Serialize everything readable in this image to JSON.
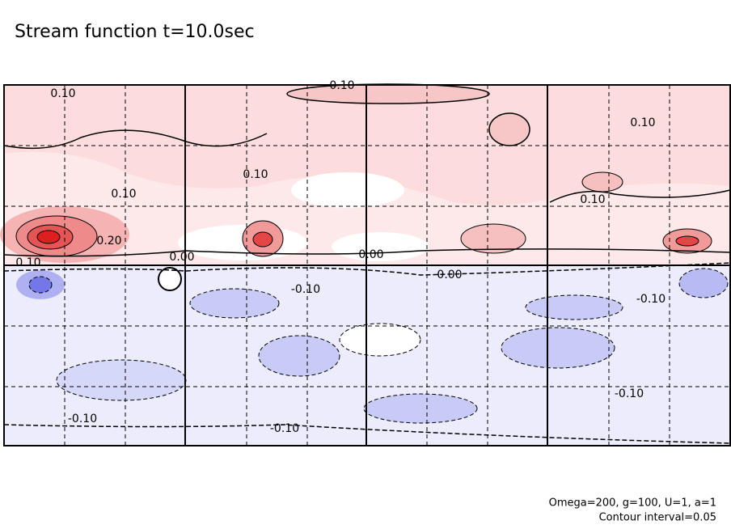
{
  "chart_data": {
    "type": "contour",
    "title": "Stream function t=10.0sec",
    "footer": [
      "Omega=200, g=100, U=1, a=1",
      "Contour interval=0.05"
    ],
    "contour_labels": [
      "0.10",
      "0.10",
      "0.10",
      "0.10",
      "0.10",
      "0.10",
      "0.20",
      "0.10",
      "0.00",
      "0.00",
      "0.00",
      "-0.10",
      "-0.10",
      "-0.10",
      "-0.10",
      "-0.10"
    ]
  }
}
